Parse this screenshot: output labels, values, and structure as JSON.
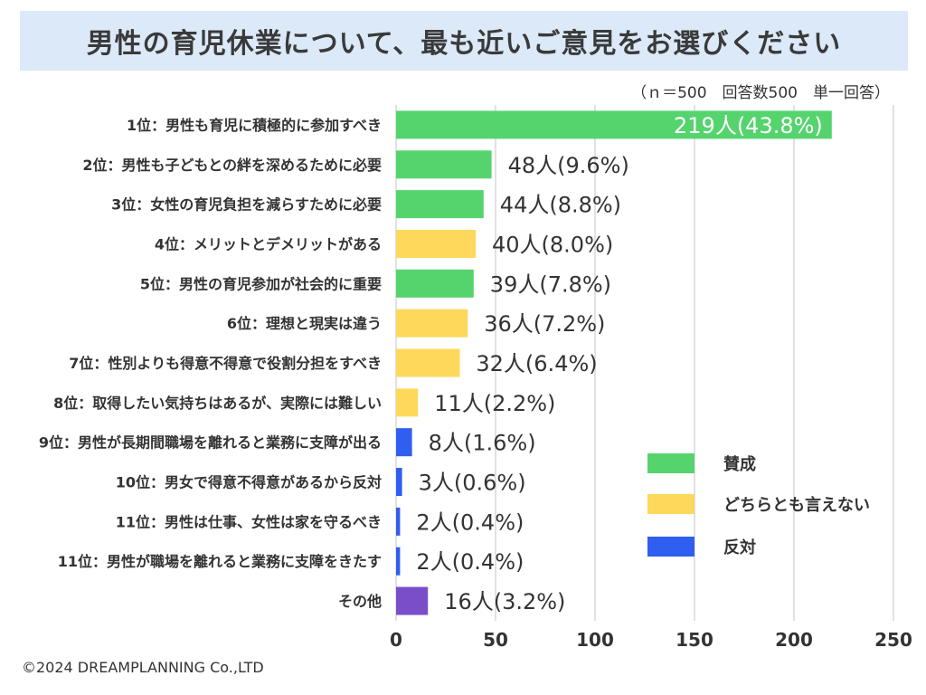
{
  "title": "男性の育児休業について、最も近いご意見をお選びください",
  "subtitle": "（ｎ＝500　回答数500　単一回答）",
  "footer": "©2024 DREAMPLANNING Co.,LTD",
  "colors": {
    "agree": "#55d46e",
    "neutral": "#fdd85a",
    "disagree": "#2f5ef0",
    "other": "#7a4ec9"
  },
  "chart_data": {
    "type": "bar",
    "orientation": "horizontal",
    "title": "男性の育児休業について、最も近いご意見をお選びください",
    "xlim": [
      0,
      250
    ],
    "xticks": [
      0,
      50,
      100,
      150,
      200,
      250
    ],
    "grid": true,
    "legend_position": "bottom-right",
    "legend": [
      {
        "key": "agree",
        "label": "賛成"
      },
      {
        "key": "neutral",
        "label": "どちらとも言えない"
      },
      {
        "key": "disagree",
        "label": "反対"
      }
    ],
    "categories": [
      "1位：男性も育児に積極的に参加すべき",
      "2位：男性も子どもとの絆を深めるために必要",
      "3位：女性の育児負担を減らすために必要",
      "4位：メリットとデメリットがある",
      "5位：男性の育児参加が社会的に重要",
      "6位：理想と現実は違う",
      "7位：性別よりも得意不得意で役割分担をすべき",
      "8位：取得したい気持ちはあるが、実際には難しい",
      "9位：男性が長期間職場を離れると業務に支障が出る",
      "10位：男女で得意不得意があるから反対",
      "11位：男性は仕事、女性は家を守るべき",
      "11位：男性が職場を離れると業務に支障をきたす",
      "その他"
    ],
    "values": [
      219,
      48,
      44,
      40,
      39,
      36,
      32,
      11,
      8,
      3,
      2,
      2,
      16
    ],
    "value_labels": [
      "219人(43.8%)",
      "48人(9.6%)",
      "44人(8.8%)",
      "40人(8.0%)",
      "39人(7.8%)",
      "36人(7.2%)",
      "32人(6.4%)",
      "11人(2.2%)",
      "8人(1.6%)",
      "3人(0.6%)",
      "2人(0.4%)",
      "2人(0.4%)",
      "16人(3.2%)"
    ],
    "groups": [
      "agree",
      "agree",
      "agree",
      "neutral",
      "agree",
      "neutral",
      "neutral",
      "neutral",
      "disagree",
      "disagree",
      "disagree",
      "disagree",
      "other"
    ]
  }
}
